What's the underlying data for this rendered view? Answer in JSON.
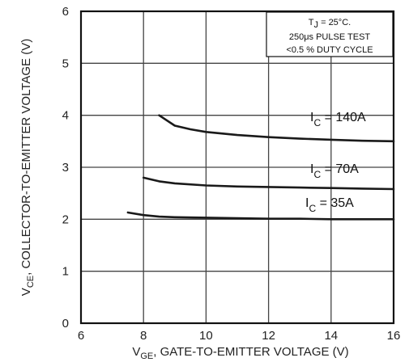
{
  "chart_data": {
    "type": "line",
    "xlabel_prefix": "V",
    "xlabel_sub": "GE",
    "xlabel_rest": ", GATE-TO-EMITTER VOLTAGE (V)",
    "ylabel_prefix": "V",
    "ylabel_sub": "CE",
    "ylabel_rest": ", COLLECTOR-TO-EMITTER VOLTAGE (V)",
    "xlim": [
      6,
      16
    ],
    "ylim": [
      0,
      6
    ],
    "x_ticks": [
      "6",
      "8",
      "10",
      "12",
      "14",
      "16"
    ],
    "y_ticks": [
      "0",
      "1",
      "2",
      "3",
      "4",
      "5",
      "6"
    ],
    "grid": true,
    "note": {
      "line1_prefix": "T",
      "line1_sub": "J",
      "line1_rest": " = 25°C.",
      "line2": "250μs PULSE TEST",
      "line3": "<0.5 % DUTY CYCLE"
    },
    "series": [
      {
        "name_prefix": "I",
        "name_sub": "C",
        "name_rest": " = 140A",
        "x": [
          8.5,
          8.7,
          9.0,
          9.5,
          10.0,
          11.0,
          12.0,
          13.0,
          14.0,
          15.0,
          16.0
        ],
        "y": [
          4.0,
          3.92,
          3.8,
          3.73,
          3.68,
          3.62,
          3.58,
          3.55,
          3.53,
          3.51,
          3.5
        ]
      },
      {
        "name_prefix": "I",
        "name_sub": "C",
        "name_rest": " = 70A",
        "x": [
          8.0,
          8.5,
          9.0,
          10.0,
          11.0,
          12.0,
          13.0,
          14.0,
          15.0,
          16.0
        ],
        "y": [
          2.8,
          2.73,
          2.69,
          2.65,
          2.63,
          2.62,
          2.61,
          2.6,
          2.59,
          2.58
        ]
      },
      {
        "name_prefix": "I",
        "name_sub": "C",
        "name_rest": " = 35A",
        "x": [
          7.5,
          8.0,
          8.5,
          9.0,
          10.0,
          11.0,
          12.0,
          13.0,
          14.0,
          15.0,
          16.0
        ],
        "y": [
          2.13,
          2.08,
          2.05,
          2.04,
          2.03,
          2.02,
          2.01,
          2.01,
          2.0,
          2.0,
          2.0
        ]
      }
    ]
  }
}
